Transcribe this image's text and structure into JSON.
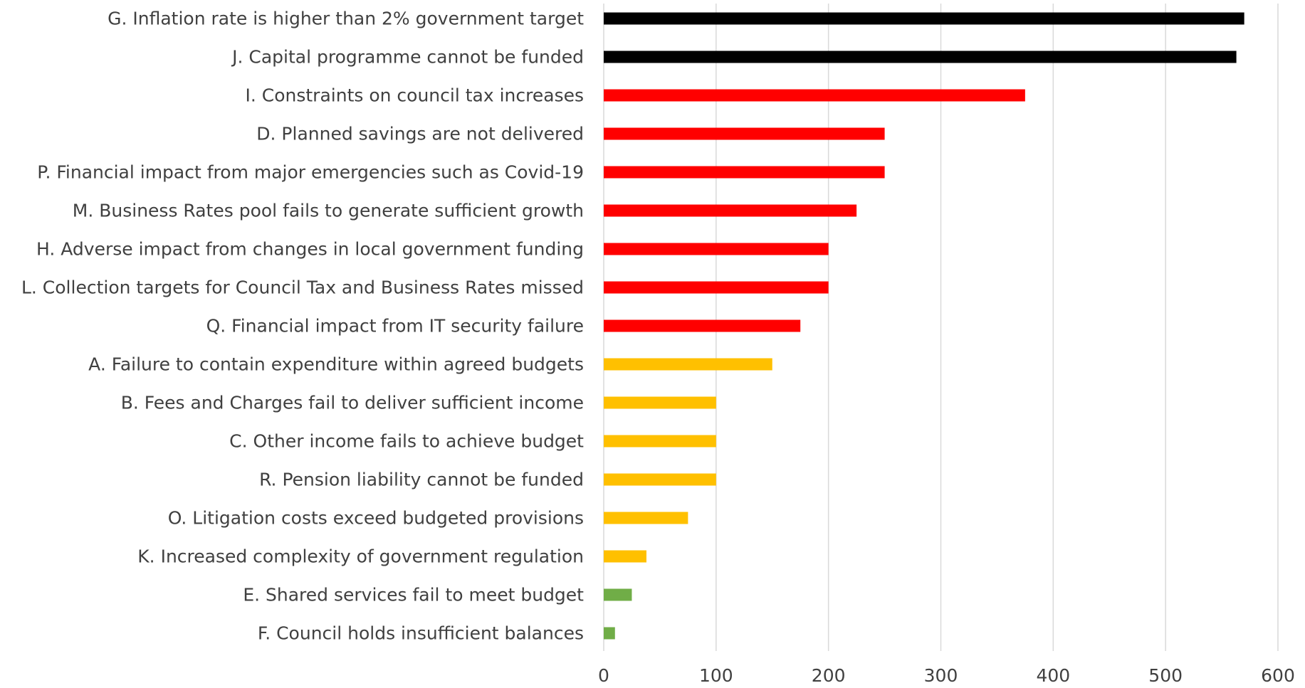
{
  "chart_data": {
    "type": "bar",
    "orientation": "horizontal",
    "title": "",
    "xlabel": "",
    "ylabel": "",
    "xlim": [
      0,
      600
    ],
    "x_ticks": [
      0,
      100,
      200,
      300,
      400,
      500,
      600
    ],
    "grid": "vertical",
    "legend": "none",
    "colors": {
      "black": "#000000",
      "red": "#ff0000",
      "amber": "#ffc000",
      "green": "#70ad47"
    },
    "categories": [
      "G. Inflation rate is higher than 2% government target",
      "J. Capital programme cannot be funded",
      "I. Constraints on council tax increases",
      "D. Planned savings are not delivered",
      "P. Financial impact from major emergencies such as Covid-19",
      "M. Business Rates pool fails to generate sufficient growth",
      "H. Adverse impact from changes in local government funding",
      "L. Collection targets for Council Tax and Business Rates missed",
      "Q. Financial impact from IT security failure",
      "A. Failure to contain expenditure within agreed budgets",
      "B. Fees and Charges fail to deliver sufficient income",
      "C. Other income fails to achieve budget",
      "R. Pension liability cannot be funded",
      "O. Litigation costs exceed budgeted provisions",
      "K. Increased complexity of government regulation",
      "E. Shared services fail to meet budget",
      "F. Council holds insufficient balances"
    ],
    "values": [
      570,
      563,
      375,
      250,
      250,
      225,
      200,
      200,
      175,
      150,
      100,
      100,
      100,
      75,
      38,
      25,
      10
    ],
    "bar_colors": [
      "#000000",
      "#000000",
      "#ff0000",
      "#ff0000",
      "#ff0000",
      "#ff0000",
      "#ff0000",
      "#ff0000",
      "#ff0000",
      "#ffc000",
      "#ffc000",
      "#ffc000",
      "#ffc000",
      "#ffc000",
      "#ffc000",
      "#70ad47",
      "#70ad47"
    ]
  }
}
